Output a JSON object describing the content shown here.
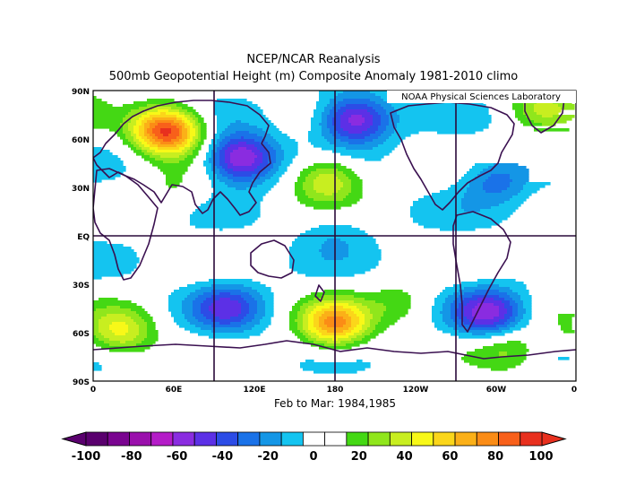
{
  "title_line1": "NCEP/NCAR Reanalysis",
  "title_line2": "500mb Geopotential Height (m) Composite Anomaly 1981-2010 climo",
  "credit": "NOAA Physical Sciences Laboratory",
  "subtitle": "Feb to Mar: 1984,1985",
  "y_ticks": [
    "90N",
    "60N",
    "30N",
    "EQ",
    "30S",
    "60S",
    "90S"
  ],
  "x_ticks": [
    "0",
    "60E",
    "120E",
    "180",
    "120W",
    "60W",
    "0"
  ],
  "colorbar": {
    "labels": [
      "-100",
      "-80",
      "-60",
      "-40",
      "-20",
      "0",
      "20",
      "40",
      "60",
      "80",
      "100"
    ],
    "colors": [
      "#5a006e",
      "#7a0490",
      "#9a10ac",
      "#b41cc8",
      "#8a2ce0",
      "#5c30e6",
      "#2c4ce6",
      "#1a72e8",
      "#1496e6",
      "#14c4f0",
      "#ffffff",
      "#ffffff",
      "#44d814",
      "#90e61c",
      "#c8ee20",
      "#f8f818",
      "#fbd61a",
      "#fbb018",
      "#fb8c16",
      "#f8601a",
      "#e8301e"
    ]
  },
  "chart_data": {
    "type": "heatmap",
    "title": "500mb Geopotential Height (m) Composite Anomaly 1981-2010 climo",
    "units": "m",
    "lon_range": [
      0,
      360
    ],
    "lat_range": [
      -90,
      90
    ],
    "color_range": [
      -100,
      100
    ],
    "anomaly_centers": [
      {
        "lon": 55,
        "lat": 65,
        "value": 95
      },
      {
        "lon": 110,
        "lat": 48,
        "value": -70
      },
      {
        "lon": 195,
        "lat": 72,
        "value": -65
      },
      {
        "lon": 175,
        "lat": 35,
        "value": 45
      },
      {
        "lon": 335,
        "lat": 80,
        "value": 30
      },
      {
        "lon": 300,
        "lat": 35,
        "value": -30
      },
      {
        "lon": 180,
        "lat": -55,
        "value": 70
      },
      {
        "lon": 20,
        "lat": -60,
        "value": 45
      },
      {
        "lon": 295,
        "lat": -48,
        "value": -55
      },
      {
        "lon": 100,
        "lat": -45,
        "value": -40
      },
      {
        "lon": 310,
        "lat": -70,
        "value": 25
      },
      {
        "lon": 230,
        "lat": -42,
        "value": 20
      },
      {
        "lon": 60,
        "lat": 27,
        "value": 15
      },
      {
        "lon": 180,
        "lat": 5,
        "value": -15
      }
    ]
  }
}
